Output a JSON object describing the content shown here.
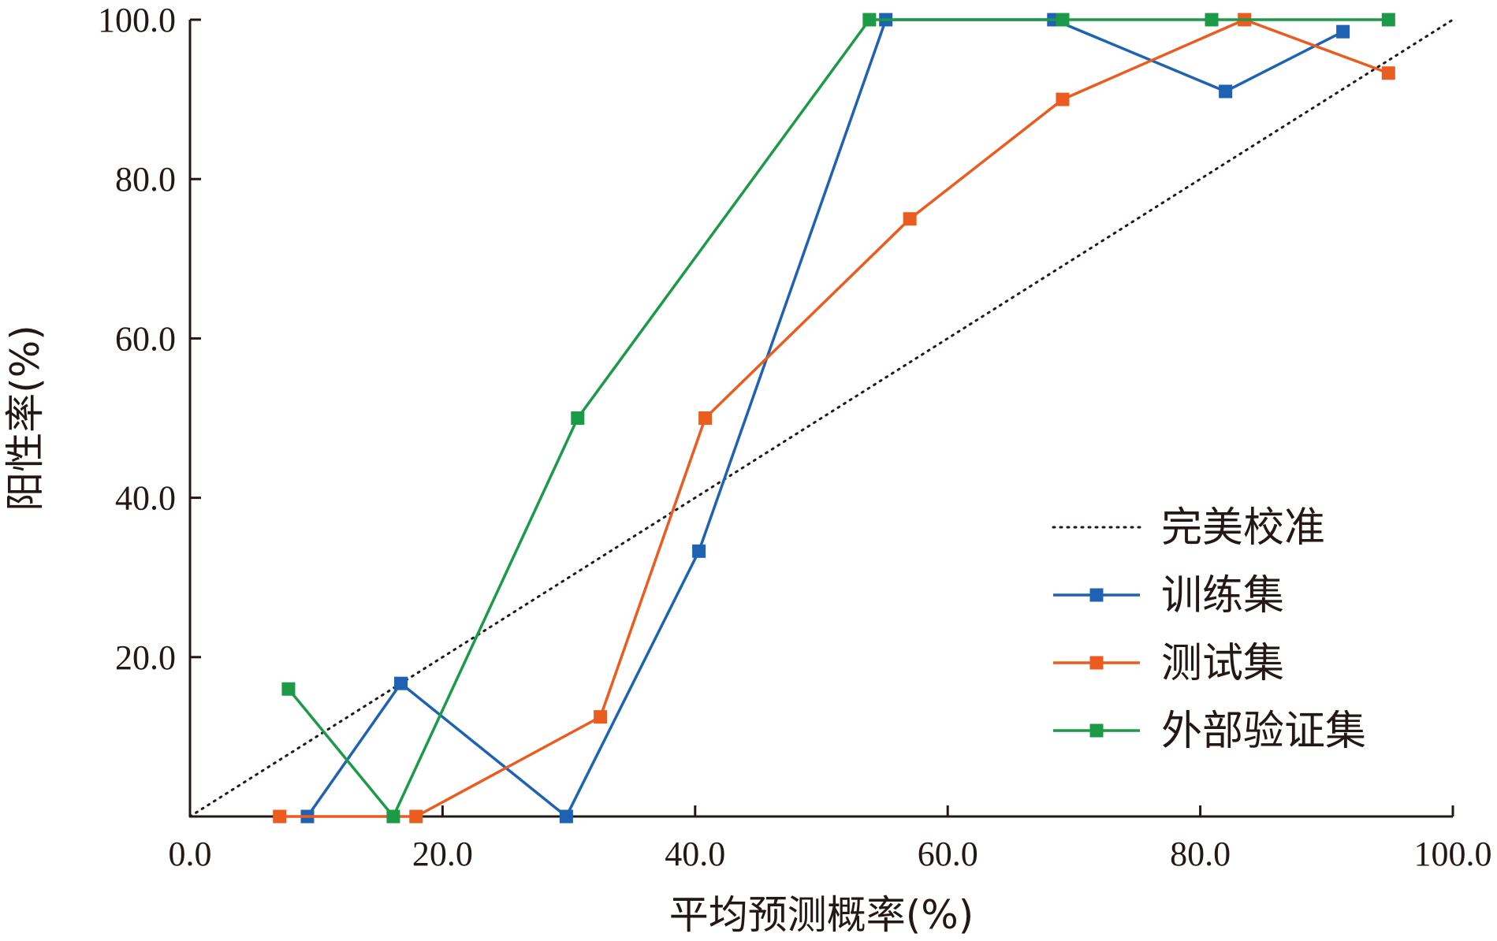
{
  "chart_data": {
    "type": "line",
    "xlabel": "平均预测概率(%)",
    "ylabel": "阳性率(%)",
    "xlim": [
      0,
      100
    ],
    "ylim": [
      0,
      100
    ],
    "xticks": [
      "0.0",
      "20.0",
      "40.0",
      "60.0",
      "80.0",
      "100.0"
    ],
    "yticks": [
      "20.0",
      "40.0",
      "60.0",
      "80.0",
      "100.0"
    ],
    "legend_position": "lower-right",
    "reference": {
      "name": "完美校准",
      "x": [
        0,
        100
      ],
      "y": [
        0,
        100
      ],
      "style": "dotted",
      "color": "#231815"
    },
    "series": [
      {
        "name": "训练集",
        "color": "#1f62b4",
        "x": [
          9.3,
          16.7,
          29.8,
          40.3,
          55.1,
          68.4,
          82.0,
          91.3
        ],
        "y": [
          0.0,
          16.7,
          0.0,
          33.3,
          100.0,
          100.0,
          91.0,
          98.5
        ]
      },
      {
        "name": "测试集",
        "color": "#eb5c20",
        "x": [
          7.1,
          17.9,
          32.5,
          40.8,
          57.0,
          69.1,
          83.5,
          94.9
        ],
        "y": [
          0.0,
          0.0,
          12.5,
          50.0,
          75.0,
          90.0,
          100.0,
          93.3
        ]
      },
      {
        "name": "外部验证集",
        "color": "#1c9a48",
        "x": [
          7.8,
          16.1,
          30.7,
          53.8,
          69.1,
          80.9,
          94.9
        ],
        "y": [
          16.0,
          0.0,
          50.0,
          100.0,
          100.0,
          100.0,
          100.0
        ]
      }
    ]
  }
}
